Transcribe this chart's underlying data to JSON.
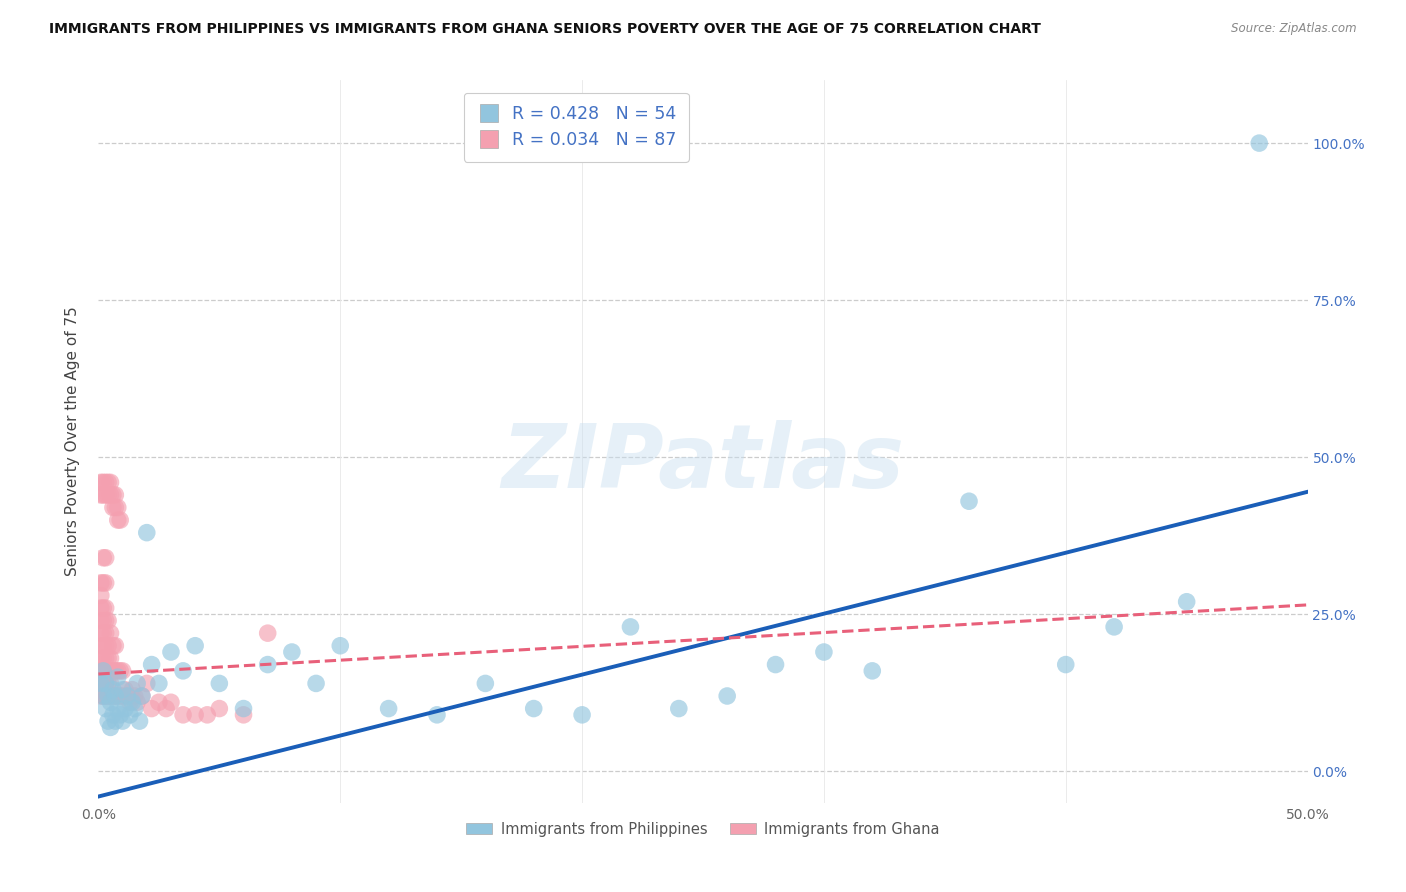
{
  "title": "IMMIGRANTS FROM PHILIPPINES VS IMMIGRANTS FROM GHANA SENIORS POVERTY OVER THE AGE OF 75 CORRELATION CHART",
  "source": "Source: ZipAtlas.com",
  "ylabel": "Seniors Poverty Over the Age of 75",
  "xlim": [
    0.0,
    0.5
  ],
  "ylim": [
    -0.05,
    1.1
  ],
  "xticks": [
    0.0,
    0.1,
    0.2,
    0.3,
    0.4,
    0.5
  ],
  "xticklabels_show": [
    "0.0%",
    "",
    "",
    "",
    "",
    "50.0%"
  ],
  "yticks": [
    0.0,
    0.25,
    0.5,
    0.75,
    1.0
  ],
  "yticklabels_right": [
    "0.0%",
    "25.0%",
    "50.0%",
    "75.0%",
    "100.0%"
  ],
  "legend_label1": "Immigrants from Philippines",
  "legend_label2": "Immigrants from Ghana",
  "color_philippines": "#92c5de",
  "color_ghana": "#f4a0b0",
  "trendline_philippines_color": "#1a5eb8",
  "trendline_ghana_color": "#e8607a",
  "watermark_text": "ZIPatlas",
  "philippines_R": 0.428,
  "philippines_N": 54,
  "ghana_R": 0.034,
  "ghana_N": 87,
  "ph_trendline_x0": 0.0,
  "ph_trendline_y0": -0.04,
  "ph_trendline_x1": 0.5,
  "ph_trendline_y1": 0.445,
  "gh_trendline_x0": 0.0,
  "gh_trendline_y0": 0.155,
  "gh_trendline_x1": 0.5,
  "gh_trendline_y1": 0.265,
  "philippines_x": [
    0.001,
    0.002,
    0.002,
    0.003,
    0.003,
    0.004,
    0.004,
    0.005,
    0.005,
    0.006,
    0.006,
    0.007,
    0.007,
    0.008,
    0.008,
    0.009,
    0.01,
    0.01,
    0.011,
    0.012,
    0.013,
    0.014,
    0.015,
    0.016,
    0.017,
    0.018,
    0.02,
    0.022,
    0.025,
    0.03,
    0.035,
    0.04,
    0.05,
    0.06,
    0.07,
    0.08,
    0.09,
    0.1,
    0.12,
    0.14,
    0.16,
    0.18,
    0.2,
    0.22,
    0.24,
    0.26,
    0.28,
    0.3,
    0.32,
    0.36,
    0.4,
    0.42,
    0.45,
    0.48
  ],
  "philippines_y": [
    0.14,
    0.12,
    0.16,
    0.1,
    0.14,
    0.08,
    0.12,
    0.07,
    0.11,
    0.09,
    0.13,
    0.08,
    0.12,
    0.1,
    0.15,
    0.09,
    0.08,
    0.13,
    0.1,
    0.12,
    0.09,
    0.11,
    0.1,
    0.14,
    0.08,
    0.12,
    0.38,
    0.17,
    0.14,
    0.19,
    0.16,
    0.2,
    0.14,
    0.1,
    0.17,
    0.19,
    0.14,
    0.2,
    0.1,
    0.09,
    0.14,
    0.1,
    0.09,
    0.23,
    0.1,
    0.12,
    0.17,
    0.19,
    0.16,
    0.43,
    0.17,
    0.23,
    0.27,
    1.0
  ],
  "ghana_x": [
    0.001,
    0.001,
    0.001,
    0.001,
    0.001,
    0.001,
    0.001,
    0.001,
    0.001,
    0.001,
    0.002,
    0.002,
    0.002,
    0.002,
    0.002,
    0.002,
    0.002,
    0.002,
    0.002,
    0.002,
    0.003,
    0.003,
    0.003,
    0.003,
    0.003,
    0.003,
    0.003,
    0.003,
    0.003,
    0.003,
    0.004,
    0.004,
    0.004,
    0.004,
    0.004,
    0.004,
    0.005,
    0.005,
    0.005,
    0.005,
    0.006,
    0.006,
    0.006,
    0.007,
    0.007,
    0.007,
    0.008,
    0.008,
    0.009,
    0.009,
    0.01,
    0.01,
    0.011,
    0.012,
    0.013,
    0.014,
    0.015,
    0.016,
    0.018,
    0.02,
    0.022,
    0.025,
    0.028,
    0.03,
    0.035,
    0.04,
    0.045,
    0.05,
    0.06,
    0.07,
    0.001,
    0.001,
    0.002,
    0.002,
    0.003,
    0.003,
    0.004,
    0.004,
    0.005,
    0.005,
    0.006,
    0.006,
    0.007,
    0.007,
    0.008,
    0.008,
    0.009
  ],
  "ghana_y": [
    0.12,
    0.14,
    0.16,
    0.18,
    0.2,
    0.22,
    0.24,
    0.26,
    0.28,
    0.3,
    0.12,
    0.14,
    0.16,
    0.18,
    0.2,
    0.22,
    0.24,
    0.26,
    0.3,
    0.34,
    0.12,
    0.14,
    0.16,
    0.18,
    0.2,
    0.22,
    0.24,
    0.26,
    0.3,
    0.34,
    0.12,
    0.14,
    0.16,
    0.18,
    0.2,
    0.24,
    0.12,
    0.14,
    0.18,
    0.22,
    0.12,
    0.16,
    0.2,
    0.12,
    0.16,
    0.2,
    0.12,
    0.16,
    0.12,
    0.16,
    0.12,
    0.16,
    0.13,
    0.12,
    0.11,
    0.13,
    0.12,
    0.11,
    0.12,
    0.14,
    0.1,
    0.11,
    0.1,
    0.11,
    0.09,
    0.09,
    0.09,
    0.1,
    0.09,
    0.22,
    0.44,
    0.46,
    0.44,
    0.46,
    0.44,
    0.46,
    0.44,
    0.46,
    0.44,
    0.46,
    0.42,
    0.44,
    0.42,
    0.44,
    0.4,
    0.42,
    0.4
  ]
}
